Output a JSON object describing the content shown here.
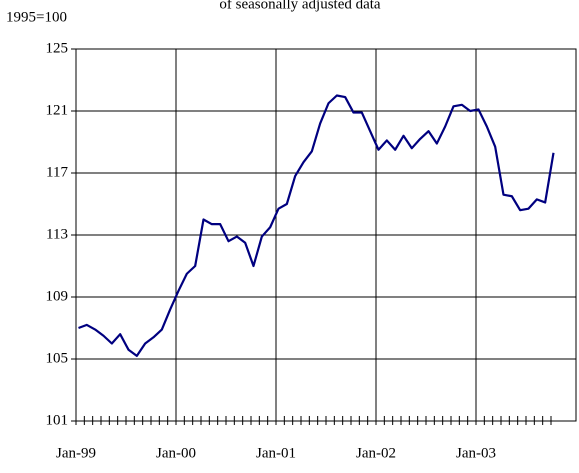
{
  "chart_data": {
    "type": "line",
    "title": "of seasonally adjusted data",
    "y_label": "1995=100",
    "categories": [
      "Jan-99",
      null,
      null,
      null,
      null,
      null,
      null,
      null,
      null,
      null,
      null,
      null,
      "Jan-00",
      null,
      null,
      null,
      null,
      null,
      null,
      null,
      null,
      null,
      null,
      null,
      "Jan-01",
      null,
      null,
      null,
      null,
      null,
      null,
      null,
      null,
      null,
      null,
      null,
      "Jan-02",
      null,
      null,
      null,
      null,
      null,
      null,
      null,
      null,
      null,
      null,
      null,
      "Jan-03",
      null,
      null,
      null,
      null,
      null,
      null,
      null,
      null,
      null
    ],
    "series": [
      {
        "color": "#000080",
        "values": [
          107.0,
          107.2,
          106.9,
          106.5,
          106.0,
          106.6,
          105.6,
          105.2,
          106.0,
          106.4,
          106.9,
          108.2,
          109.4,
          110.5,
          111.0,
          114.0,
          113.7,
          113.7,
          112.6,
          112.9,
          112.5,
          111.0,
          112.9,
          113.5,
          114.7,
          115.0,
          116.8,
          117.7,
          118.4,
          120.2,
          121.5,
          122.0,
          121.9,
          120.9,
          120.9,
          119.7,
          118.5,
          119.1,
          118.5,
          119.4,
          118.6,
          119.2,
          119.7,
          118.9,
          120.0,
          121.3,
          121.4,
          121.0,
          121.1,
          120.0,
          118.7,
          115.6,
          115.5,
          114.6,
          114.7,
          115.3,
          115.1,
          118.3
        ]
      }
    ],
    "ylim": [
      101,
      125
    ],
    "yticks": [
      101,
      105,
      109,
      113,
      117,
      121,
      125
    ],
    "grid": true
  }
}
